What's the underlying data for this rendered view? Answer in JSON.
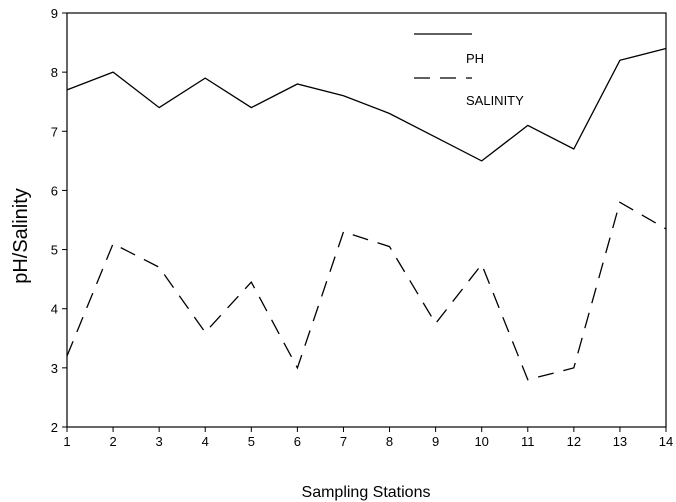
{
  "chart_data": {
    "type": "line",
    "title": "",
    "xlabel": "Sampling Stations",
    "ylabel": "pH/Salinity",
    "x": [
      1,
      2,
      3,
      4,
      5,
      6,
      7,
      8,
      9,
      10,
      11,
      12,
      13,
      14
    ],
    "xlim": [
      1,
      14
    ],
    "ylim": [
      2,
      9
    ],
    "xticks": [
      "1",
      "2",
      "3",
      "4",
      "5",
      "6",
      "7",
      "8",
      "9",
      "10",
      "11",
      "12",
      "13",
      "14"
    ],
    "yticks": [
      "2",
      "3",
      "4",
      "5",
      "6",
      "7",
      "8",
      "9"
    ],
    "grid": false,
    "legend_position": "top-right",
    "series": [
      {
        "name": "PH",
        "style": "solid",
        "color": "#000000",
        "values": [
          7.7,
          8.0,
          7.4,
          7.9,
          7.4,
          7.8,
          7.6,
          7.3,
          6.9,
          6.5,
          7.1,
          6.7,
          8.2,
          8.4
        ]
      },
      {
        "name": "SALINITY",
        "style": "dashed",
        "color": "#000000",
        "values": [
          3.2,
          5.1,
          4.7,
          3.6,
          4.45,
          3.0,
          5.3,
          5.05,
          3.75,
          4.75,
          2.8,
          3.0,
          5.8,
          5.35
        ]
      }
    ]
  }
}
